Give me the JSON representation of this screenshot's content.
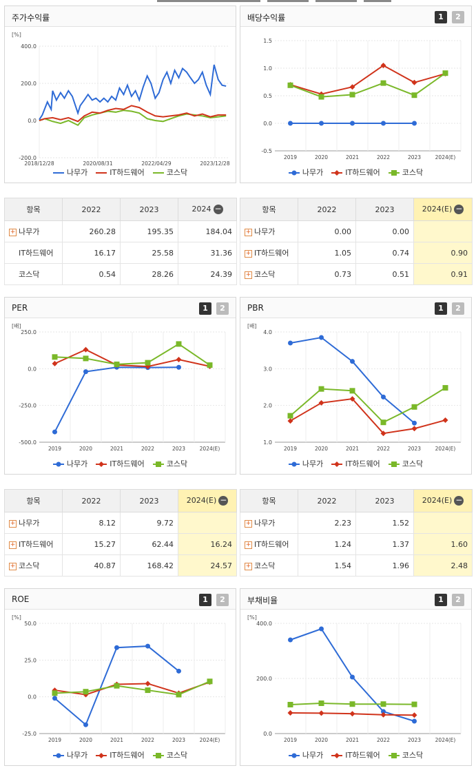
{
  "colors": {
    "namuga": "#2e6bd6",
    "it": "#d0331b",
    "kosdaq": "#7ab829"
  },
  "legend": {
    "namuga": "나무가",
    "it": "IT하드웨어",
    "kosdaq": "코스닥"
  },
  "pager": {
    "p1": "1",
    "p2": "2"
  },
  "panels": {
    "stock": {
      "title": "주가수익률",
      "unit": "[%]"
    },
    "dividend": {
      "title": "배당수익률"
    },
    "per": {
      "title": "PER",
      "unit": "[배]"
    },
    "pbr": {
      "title": "PBR",
      "unit": "[배]"
    },
    "roe": {
      "title": "ROE",
      "unit": "[%]"
    },
    "debt": {
      "title": "부채비율",
      "unit": "[%]"
    }
  },
  "chart_data": [
    {
      "id": "stock",
      "type": "line",
      "ylim": [
        -200,
        400
      ],
      "yticks": [
        "400.0",
        "200.0",
        "0.0",
        "-200.0"
      ],
      "xticks": [
        "2018/12/28",
        "2020/08/31",
        "2022/04/29",
        "2023/12/28"
      ],
      "x_range": [
        "2018-12-28",
        "2024-12-31"
      ],
      "series": [
        {
          "name": "나무가",
          "x": [
            "2018-12-28",
            "2019-02-01",
            "2019-04-01",
            "2019-05-15",
            "2019-06-01",
            "2019-07-15",
            "2019-09-01",
            "2019-10-15",
            "2019-12-01",
            "2020-01-15",
            "2020-03-20",
            "2020-04-15",
            "2020-06-01",
            "2020-07-15",
            "2020-09-01",
            "2020-10-15",
            "2020-12-01",
            "2021-01-15",
            "2021-03-01",
            "2021-04-15",
            "2021-06-01",
            "2021-07-15",
            "2021-09-01",
            "2021-10-15",
            "2021-12-01",
            "2022-01-15",
            "2022-03-01",
            "2022-04-15",
            "2022-06-01",
            "2022-07-15",
            "2022-09-01",
            "2022-10-15",
            "2022-12-01",
            "2023-01-15",
            "2023-03-01",
            "2023-04-15",
            "2023-06-01",
            "2023-07-15",
            "2023-09-01",
            "2023-10-15",
            "2023-12-01",
            "2024-01-15",
            "2024-03-01",
            "2024-04-15",
            "2024-06-01",
            "2024-07-15",
            "2024-09-01",
            "2024-10-15",
            "2024-12-01"
          ],
          "values": [
            5,
            30,
            100,
            60,
            160,
            110,
            150,
            120,
            160,
            130,
            40,
            80,
            110,
            140,
            110,
            120,
            100,
            120,
            100,
            130,
            110,
            175,
            140,
            190,
            130,
            160,
            110,
            180,
            240,
            200,
            120,
            150,
            220,
            260,
            200,
            270,
            230,
            280,
            260,
            230,
            200,
            220,
            260,
            190,
            140,
            300,
            220,
            190,
            185
          ]
        },
        {
          "name": "IT하드웨어",
          "x": [
            "2018-12-28",
            "2019-03-01",
            "2019-06-01",
            "2019-09-01",
            "2019-12-01",
            "2020-03-20",
            "2020-06-01",
            "2020-09-01",
            "2020-12-01",
            "2021-03-01",
            "2021-06-01",
            "2021-09-01",
            "2021-12-01",
            "2022-03-01",
            "2022-06-01",
            "2022-09-01",
            "2022-12-01",
            "2023-03-01",
            "2023-06-01",
            "2023-09-01",
            "2023-12-01",
            "2024-03-01",
            "2024-06-01",
            "2024-09-01",
            "2024-12-01"
          ],
          "values": [
            0,
            10,
            15,
            5,
            15,
            -5,
            25,
            45,
            40,
            55,
            65,
            60,
            80,
            70,
            45,
            25,
            20,
            25,
            30,
            40,
            25,
            35,
            20,
            30,
            30
          ]
        },
        {
          "name": "코스닥",
          "x": [
            "2018-12-28",
            "2019-03-01",
            "2019-06-01",
            "2019-09-01",
            "2019-12-01",
            "2020-03-20",
            "2020-06-01",
            "2020-09-01",
            "2020-12-01",
            "2021-03-01",
            "2021-06-01",
            "2021-09-01",
            "2021-12-01",
            "2022-03-01",
            "2022-06-01",
            "2022-09-01",
            "2022-12-01",
            "2023-03-01",
            "2023-06-01",
            "2023-09-01",
            "2023-12-01",
            "2024-03-01",
            "2024-06-01",
            "2024-09-01",
            "2024-12-01"
          ],
          "values": [
            0,
            10,
            -5,
            -15,
            0,
            -25,
            15,
            30,
            40,
            50,
            45,
            55,
            50,
            40,
            10,
            0,
            -5,
            10,
            25,
            35,
            30,
            25,
            15,
            20,
            25
          ]
        }
      ]
    },
    {
      "id": "dividend",
      "type": "line",
      "ylim": [
        -0.5,
        1.5
      ],
      "yticks": [
        "1.5",
        "1.0",
        "0.5",
        "0.0",
        "-0.5"
      ],
      "categories": [
        "2019",
        "2020",
        "2021",
        "2022",
        "2023",
        "2024(E)"
      ],
      "series": [
        {
          "name": "나무가",
          "values": [
            0,
            0,
            0,
            0,
            0,
            null
          ]
        },
        {
          "name": "IT하드웨어",
          "values": [
            0.7,
            0.53,
            0.66,
            1.05,
            0.74,
            0.9
          ]
        },
        {
          "name": "코스닥",
          "values": [
            0.69,
            0.48,
            0.52,
            0.73,
            0.51,
            0.91
          ]
        }
      ]
    },
    {
      "id": "per",
      "type": "line",
      "ylim": [
        -500,
        250
      ],
      "yticks": [
        "250.0",
        "0.0",
        "-250.0",
        "-500.0"
      ],
      "categories": [
        "2019",
        "2020",
        "2021",
        "2022",
        "2023",
        "2024(E)"
      ],
      "series": [
        {
          "name": "나무가",
          "values": [
            -430,
            -20,
            10,
            8.12,
            9.72,
            null
          ]
        },
        {
          "name": "IT하드웨어",
          "values": [
            35,
            130,
            25,
            15.27,
            62.44,
            16.24
          ]
        },
        {
          "name": "코스닥",
          "values": [
            80,
            70,
            30,
            40.87,
            168.42,
            24.57
          ]
        }
      ]
    },
    {
      "id": "pbr",
      "type": "line",
      "ylim": [
        1.0,
        4.0
      ],
      "yticks": [
        "4.0",
        "3.0",
        "2.0",
        "1.0"
      ],
      "categories": [
        "2019",
        "2020",
        "2021",
        "2022",
        "2023",
        "2024(E)"
      ],
      "series": [
        {
          "name": "나무가",
          "values": [
            3.7,
            3.85,
            3.2,
            2.23,
            1.52,
            null
          ]
        },
        {
          "name": "IT하드웨어",
          "values": [
            1.58,
            2.07,
            2.18,
            1.24,
            1.37,
            1.6
          ]
        },
        {
          "name": "코스닥",
          "values": [
            1.72,
            2.45,
            2.4,
            1.54,
            1.96,
            2.48
          ]
        }
      ]
    },
    {
      "id": "roe",
      "type": "line",
      "ylim": [
        -25,
        50
      ],
      "yticks": [
        "50.0",
        "25.0",
        "0.0",
        "-25.0"
      ],
      "categories": [
        "2019",
        "2020",
        "2021",
        "2022",
        "2023",
        "2024(E)"
      ],
      "series": [
        {
          "name": "나무가",
          "values": [
            -1,
            -19,
            33.5,
            34.5,
            17.5,
            null
          ]
        },
        {
          "name": "IT하드웨어",
          "values": [
            4.5,
            1.5,
            8.5,
            9.0,
            2.5,
            10
          ]
        },
        {
          "name": "코스닥",
          "values": [
            2.5,
            3.5,
            7.5,
            4.5,
            1.5,
            10.5
          ]
        }
      ]
    },
    {
      "id": "debt",
      "type": "line",
      "ylim": [
        0,
        400
      ],
      "yticks": [
        "400.0",
        "200.0",
        "0.0"
      ],
      "categories": [
        "2019",
        "2020",
        "2021",
        "2022",
        "2023",
        "2024(E)"
      ],
      "series": [
        {
          "name": "나무가",
          "values": [
            340,
            380,
            205,
            80,
            45,
            null
          ]
        },
        {
          "name": "IT하드웨어",
          "values": [
            75,
            74,
            72,
            68,
            67,
            null
          ]
        },
        {
          "name": "코스닥",
          "values": [
            105,
            110,
            107,
            107,
            106,
            null
          ]
        }
      ]
    }
  ],
  "tables": {
    "stock": {
      "head": [
        "항목",
        "2022",
        "2023",
        "2024"
      ],
      "rows": [
        {
          "name": "나무가",
          "plus": true,
          "v": [
            "260.28",
            "195.35",
            "184.04"
          ]
        },
        {
          "name": "IT하드웨어",
          "plus": false,
          "v": [
            "16.17",
            "25.58",
            "31.36"
          ]
        },
        {
          "name": "코스닥",
          "plus": false,
          "v": [
            "0.54",
            "28.26",
            "24.39"
          ]
        }
      ]
    },
    "dividend": {
      "head": [
        "항목",
        "2022",
        "2023",
        "2024(E)"
      ],
      "rows": [
        {
          "name": "나무가",
          "plus": true,
          "v": [
            "0.00",
            "0.00",
            ""
          ]
        },
        {
          "name": "IT하드웨어",
          "plus": true,
          "v": [
            "1.05",
            "0.74",
            "0.90"
          ]
        },
        {
          "name": "코스닥",
          "plus": true,
          "v": [
            "0.73",
            "0.51",
            "0.91"
          ]
        }
      ]
    },
    "per": {
      "head": [
        "항목",
        "2022",
        "2023",
        "2024(E)"
      ],
      "rows": [
        {
          "name": "나무가",
          "plus": true,
          "v": [
            "8.12",
            "9.72",
            ""
          ]
        },
        {
          "name": "IT하드웨어",
          "plus": true,
          "v": [
            "15.27",
            "62.44",
            "16.24"
          ]
        },
        {
          "name": "코스닥",
          "plus": true,
          "v": [
            "40.87",
            "168.42",
            "24.57"
          ]
        }
      ]
    },
    "pbr": {
      "head": [
        "항목",
        "2022",
        "2023",
        "2024(E)"
      ],
      "rows": [
        {
          "name": "나무가",
          "plus": true,
          "v": [
            "2.23",
            "1.52",
            ""
          ]
        },
        {
          "name": "IT하드웨어",
          "plus": true,
          "v": [
            "1.24",
            "1.37",
            "1.60"
          ]
        },
        {
          "name": "코스닥",
          "plus": true,
          "v": [
            "1.54",
            "1.96",
            "2.48"
          ]
        }
      ]
    }
  }
}
